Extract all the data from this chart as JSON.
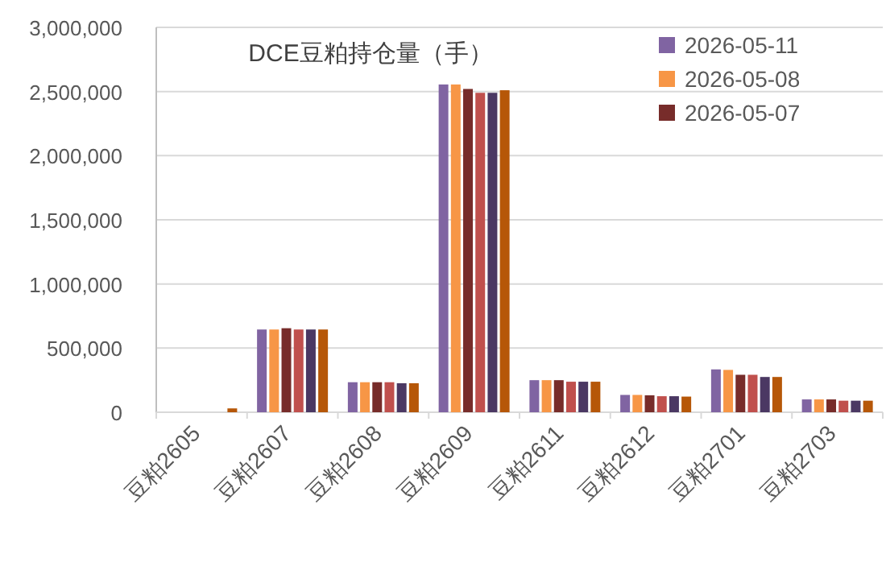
{
  "chart_data": {
    "type": "bar",
    "title": "DCE豆粕持仓量（手）",
    "categories": [
      "豆粕2605",
      "豆粕2607",
      "豆粕2608",
      "豆粕2609",
      "豆粕2611",
      "豆粕2612",
      "豆粕2701",
      "豆粕2703"
    ],
    "series": [
      {
        "name": "2026-05-11",
        "color": "#8064a2",
        "values": [
          0,
          645000,
          234000,
          2555000,
          250000,
          135000,
          334000,
          100000
        ]
      },
      {
        "name": "2026-05-08",
        "color": "#f79646",
        "values": [
          0,
          645000,
          234000,
          2555000,
          250000,
          135000,
          330000,
          100000
        ]
      },
      {
        "name": "2026-05-07",
        "color": "#772c2a",
        "values": [
          0,
          655000,
          234000,
          2520000,
          250000,
          132000,
          292000,
          100000
        ]
      },
      {
        "color": "#c0504d",
        "values": [
          0,
          645000,
          234000,
          2490000,
          238000,
          125000,
          292000,
          90000
        ]
      },
      {
        "color": "#4b3863",
        "values": [
          0,
          645000,
          226000,
          2490000,
          238000,
          125000,
          275000,
          90000
        ]
      },
      {
        "color": "#b65708",
        "values": [
          30000,
          645000,
          226000,
          2510000,
          238000,
          122000,
          275000,
          90000
        ]
      }
    ],
    "ylim": [
      0,
      3000000
    ],
    "yticks": [
      {
        "value": 0,
        "label": "0"
      },
      {
        "value": 500000,
        "label": "500,000"
      },
      {
        "value": 1000000,
        "label": "1,000,000"
      },
      {
        "value": 1500000,
        "label": "1,500,000"
      },
      {
        "value": 2000000,
        "label": "2,000,000"
      },
      {
        "value": 2500000,
        "label": "2,500,000"
      },
      {
        "value": 3000000,
        "label": "3,000,000"
      }
    ],
    "grid": "y",
    "legend": "top right"
  }
}
